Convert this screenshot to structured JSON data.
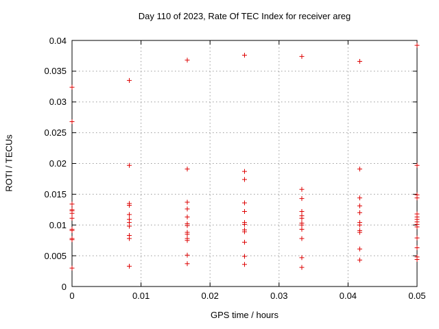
{
  "title": "Day 110 of 2023, Rate Of TEC Index for receiver areg",
  "chart_data": {
    "type": "scatter",
    "title": "Day 110 of 2023, Rate Of TEC Index for receiver areg",
    "xlabel": "GPS time / hours",
    "ylabel": "ROTI / TECUs",
    "xlim": [
      0,
      0.05
    ],
    "ylim": [
      0,
      0.04
    ],
    "x_ticks": [
      0,
      0.01,
      0.02,
      0.03,
      0.04,
      0.05
    ],
    "x_tick_labels": [
      "0",
      "0.01",
      "0.02",
      "0.03",
      "0.04",
      "0.05"
    ],
    "y_ticks": [
      0,
      0.005,
      0.01,
      0.015,
      0.02,
      0.025,
      0.03,
      0.035,
      0.04
    ],
    "y_tick_labels": [
      "0",
      "0.005",
      "0.01",
      "0.015",
      "0.02",
      "0.025",
      "0.03",
      "0.035",
      "0.04"
    ],
    "grid": true,
    "legend": "none",
    "marker": "plus",
    "marker_color": "#dd0000",
    "grid_color": "#999999",
    "axis_color": "#000000",
    "series": [
      {
        "name": "ROTI",
        "points": [
          [
            0,
            0.0324
          ],
          [
            0,
            0.0268
          ],
          [
            0,
            0.0134
          ],
          [
            0,
            0.0125
          ],
          [
            0,
            0.0123
          ],
          [
            0,
            0.0119
          ],
          [
            0,
            0.0111
          ],
          [
            0,
            0.0093
          ],
          [
            0,
            0.0091
          ],
          [
            0,
            0.0078
          ],
          [
            0,
            0.0076
          ],
          [
            0,
            0.003
          ],
          [
            0.0083,
            0.0335
          ],
          [
            0.0083,
            0.0197
          ],
          [
            0.0083,
            0.0135
          ],
          [
            0.0083,
            0.0132
          ],
          [
            0.0083,
            0.0117
          ],
          [
            0.0083,
            0.0109
          ],
          [
            0.0083,
            0.0104
          ],
          [
            0.0083,
            0.0098
          ],
          [
            0.0083,
            0.0083
          ],
          [
            0.0083,
            0.0078
          ],
          [
            0.0083,
            0.0033
          ],
          [
            0.0167,
            0.0368
          ],
          [
            0.0167,
            0.0191
          ],
          [
            0.0167,
            0.0137
          ],
          [
            0.0167,
            0.0126
          ],
          [
            0.0167,
            0.0113
          ],
          [
            0.0167,
            0.0102
          ],
          [
            0.0167,
            0.0099
          ],
          [
            0.0167,
            0.0088
          ],
          [
            0.0167,
            0.0085
          ],
          [
            0.0167,
            0.0078
          ],
          [
            0.0167,
            0.0075
          ],
          [
            0.0167,
            0.0051
          ],
          [
            0.0167,
            0.0037
          ],
          [
            0.025,
            0.0376
          ],
          [
            0.025,
            0.0187
          ],
          [
            0.025,
            0.0174
          ],
          [
            0.025,
            0.0136
          ],
          [
            0.025,
            0.0122
          ],
          [
            0.025,
            0.0104
          ],
          [
            0.025,
            0.0101
          ],
          [
            0.025,
            0.0092
          ],
          [
            0.025,
            0.0089
          ],
          [
            0.025,
            0.0072
          ],
          [
            0.025,
            0.0049
          ],
          [
            0.025,
            0.0036
          ],
          [
            0.0333,
            0.0374
          ],
          [
            0.0333,
            0.0158
          ],
          [
            0.0333,
            0.0143
          ],
          [
            0.0333,
            0.0122
          ],
          [
            0.0333,
            0.0115
          ],
          [
            0.0333,
            0.0111
          ],
          [
            0.0333,
            0.0103
          ],
          [
            0.0333,
            0.01
          ],
          [
            0.0333,
            0.0093
          ],
          [
            0.0333,
            0.0078
          ],
          [
            0.0333,
            0.0047
          ],
          [
            0.0333,
            0.0031
          ],
          [
            0.0417,
            0.0366
          ],
          [
            0.0417,
            0.0191
          ],
          [
            0.0417,
            0.0144
          ],
          [
            0.0417,
            0.0131
          ],
          [
            0.0417,
            0.012
          ],
          [
            0.0417,
            0.0104
          ],
          [
            0.0417,
            0.01
          ],
          [
            0.0417,
            0.0091
          ],
          [
            0.0417,
            0.0088
          ],
          [
            0.0417,
            0.0061
          ],
          [
            0.0417,
            0.0043
          ],
          [
            0.05,
            0.0392
          ],
          [
            0.05,
            0.0197
          ],
          [
            0.05,
            0.0149
          ],
          [
            0.05,
            0.0144
          ],
          [
            0.05,
            0.0118
          ],
          [
            0.05,
            0.0113
          ],
          [
            0.05,
            0.0109
          ],
          [
            0.05,
            0.0105
          ],
          [
            0.05,
            0.0101
          ],
          [
            0.05,
            0.0097
          ],
          [
            0.05,
            0.0079
          ],
          [
            0.05,
            0.0063
          ],
          [
            0.05,
            0.0048
          ],
          [
            0.05,
            0.0044
          ]
        ]
      }
    ]
  }
}
